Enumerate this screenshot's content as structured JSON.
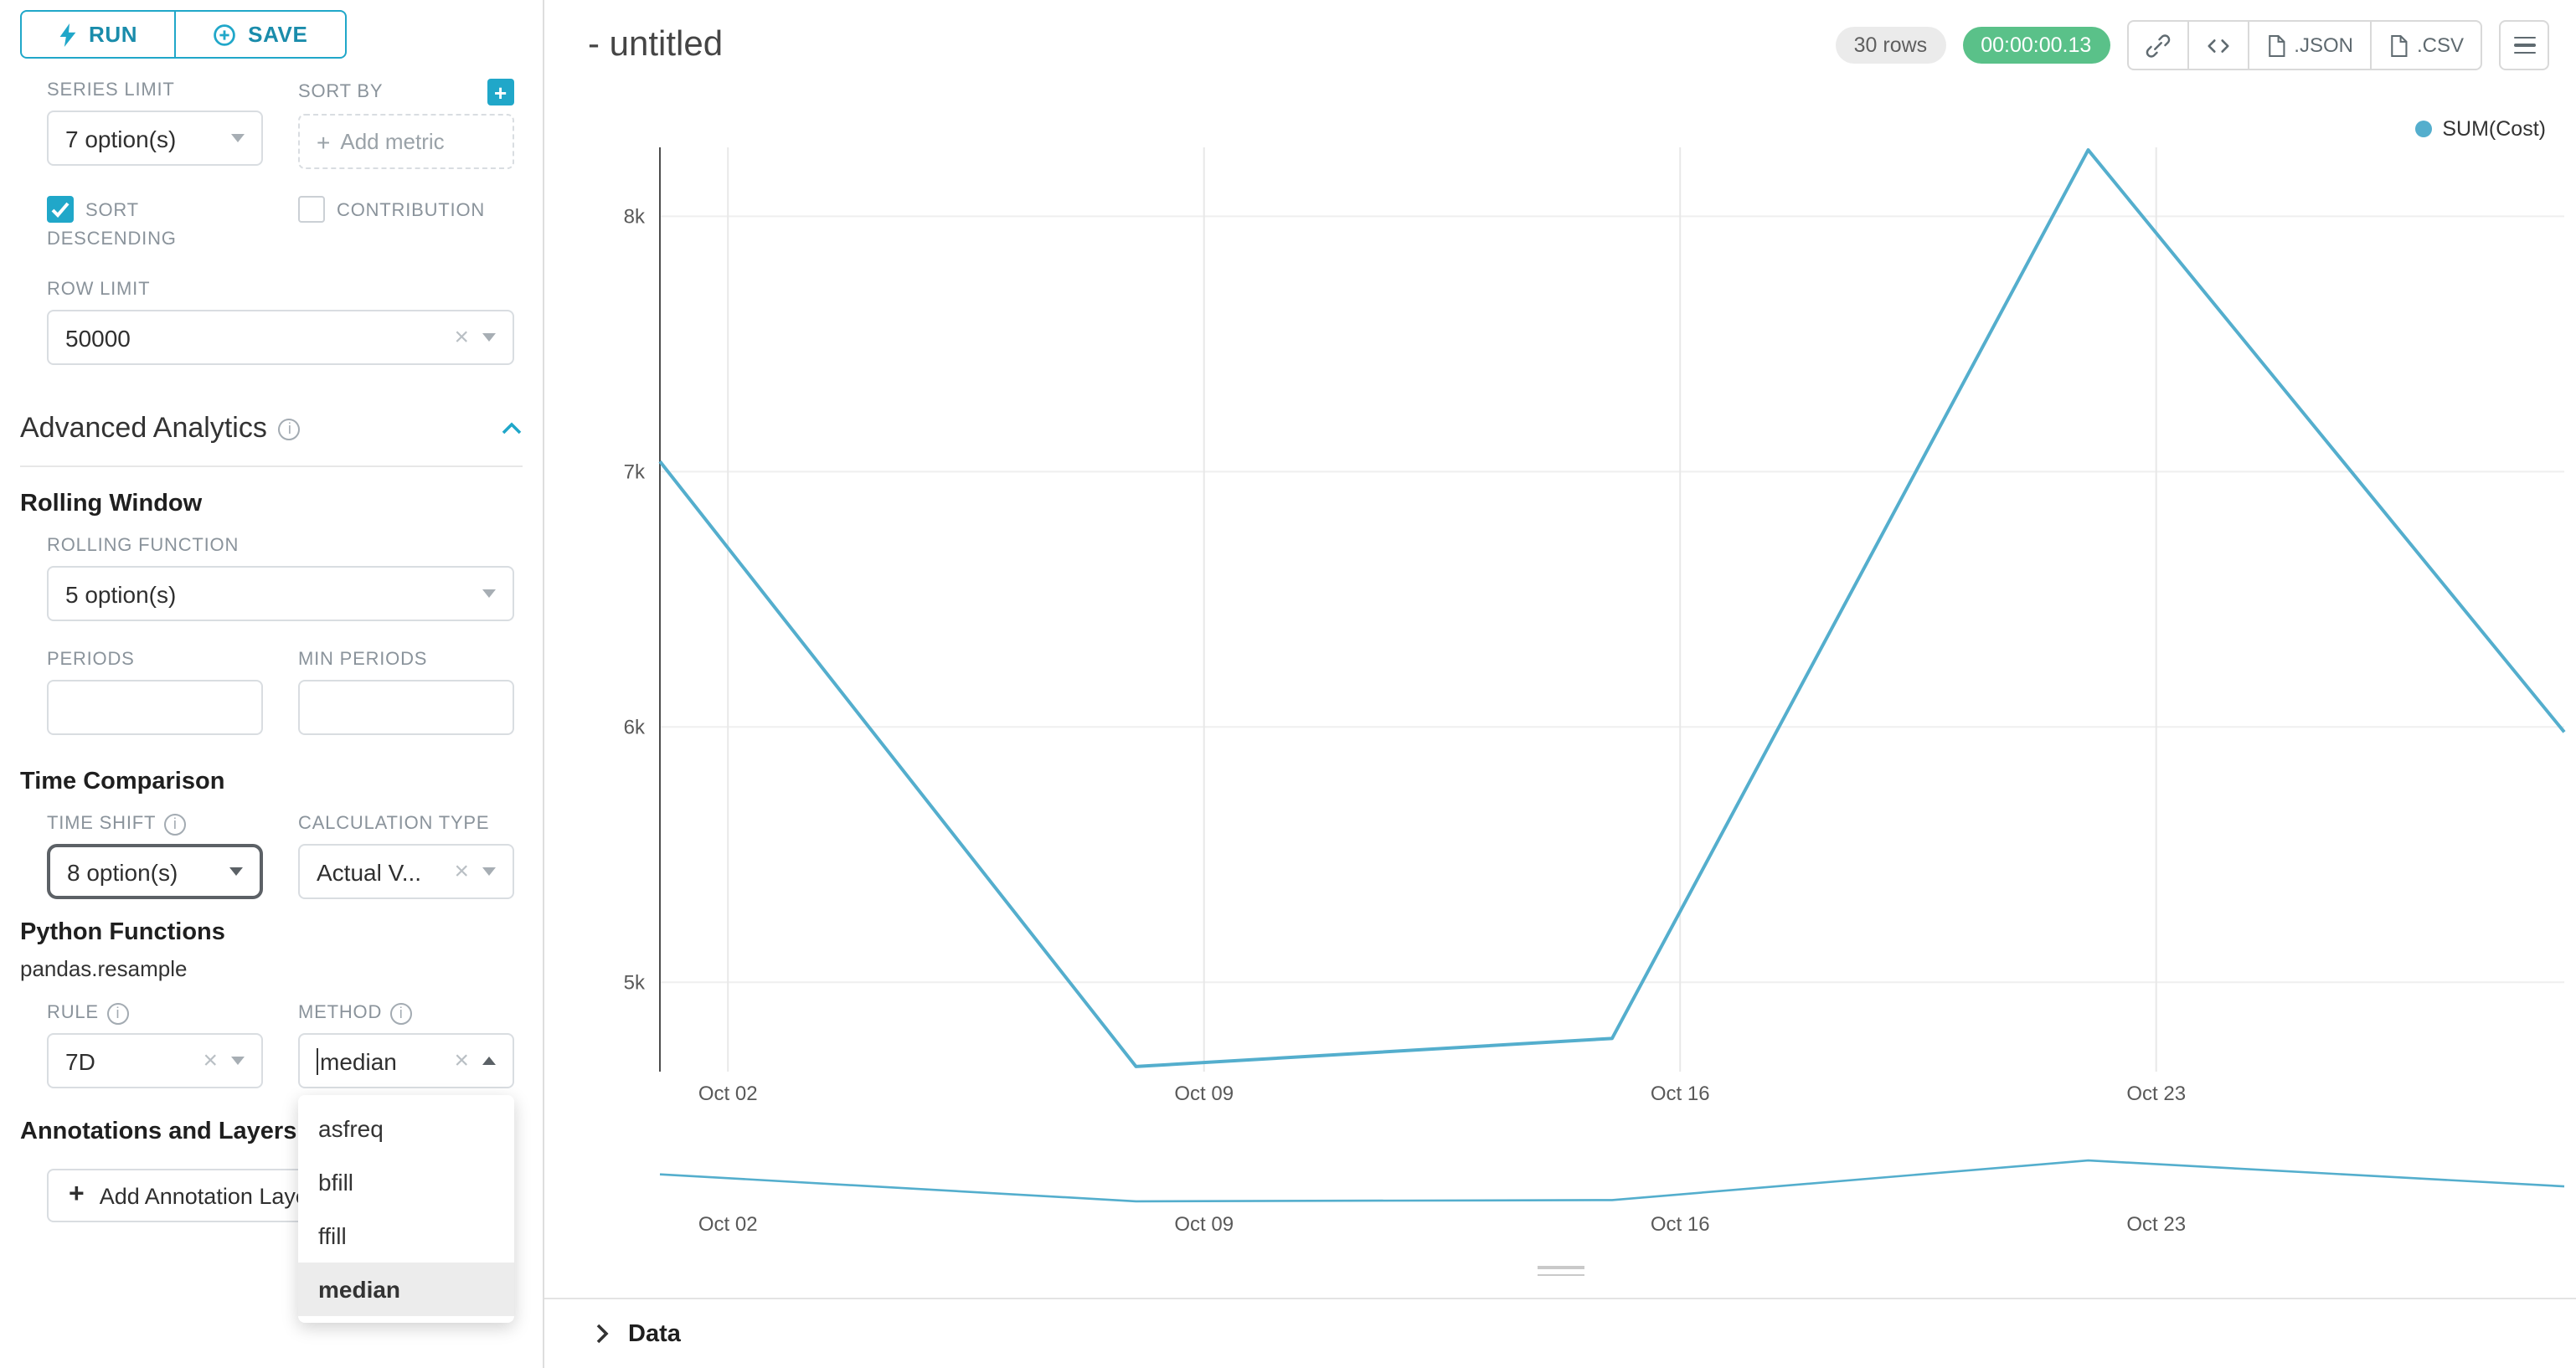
{
  "toolbar": {
    "run": "RUN",
    "save": "SAVE"
  },
  "sidebar": {
    "series_limit": {
      "label": "SERIES LIMIT",
      "value": "7 option(s)"
    },
    "sort_by": {
      "label": "SORT BY",
      "placeholder": "Add metric"
    },
    "sort_descending": {
      "label": "SORT DESCENDING",
      "checked": true
    },
    "contribution": {
      "label": "CONTRIBUTION",
      "checked": false
    },
    "row_limit": {
      "label": "ROW LIMIT",
      "value": "50000"
    },
    "advanced_analytics_title": "Advanced Analytics",
    "rolling_window_title": "Rolling Window",
    "rolling_function": {
      "label": "ROLLING FUNCTION",
      "value": "5 option(s)"
    },
    "periods": {
      "label": "PERIODS",
      "value": ""
    },
    "min_periods": {
      "label": "MIN PERIODS",
      "value": ""
    },
    "time_comparison_title": "Time Comparison",
    "time_shift": {
      "label": "TIME SHIFT",
      "value": "8 option(s)"
    },
    "calculation_type": {
      "label": "CALCULATION TYPE",
      "value": "Actual V..."
    },
    "python_functions_title": "Python Functions",
    "pandas_resample": "pandas.resample",
    "rule": {
      "label": "RULE",
      "value": "7D"
    },
    "method": {
      "label": "METHOD",
      "value": "median",
      "options": [
        "asfreq",
        "bfill",
        "ffill",
        "median"
      ],
      "selected": "median"
    },
    "annotations_title": "Annotations and Layers",
    "add_annotation_label": "Add Annotation Layer"
  },
  "header": {
    "title": "- untitled",
    "rows_badge": "30 rows",
    "timer": "00:00:00.13",
    "json_label": ".JSON",
    "csv_label": ".CSV"
  },
  "data_panel": {
    "title": "Data"
  },
  "chart_data": {
    "type": "line",
    "title": "",
    "legend": [
      "SUM(Cost)"
    ],
    "legend_position": "top-right",
    "grid": true,
    "line_color": "#54aecd",
    "series": [
      {
        "name": "SUM(Cost)",
        "x": [
          "Oct 01",
          "Oct 08",
          "Oct 15",
          "Oct 22",
          "Oct 29"
        ],
        "x_days": [
          0,
          7,
          14,
          21,
          28
        ],
        "values": [
          7040,
          4670,
          4780,
          8260,
          5980
        ]
      }
    ],
    "x_domain_days": [
      0,
      28
    ],
    "x_ticks": [
      {
        "day": 1,
        "label": "Oct 02"
      },
      {
        "day": 8,
        "label": "Oct 09"
      },
      {
        "day": 15,
        "label": "Oct 16"
      },
      {
        "day": 22,
        "label": "Oct 23"
      }
    ],
    "y_ticks": [
      {
        "value": 5000,
        "label": "5k"
      },
      {
        "value": 6000,
        "label": "6k"
      },
      {
        "value": 7000,
        "label": "7k"
      },
      {
        "value": 8000,
        "label": "8k"
      }
    ],
    "ylim": [
      4650,
      8270
    ],
    "mini_ylim": [
      4000,
      9000
    ]
  }
}
